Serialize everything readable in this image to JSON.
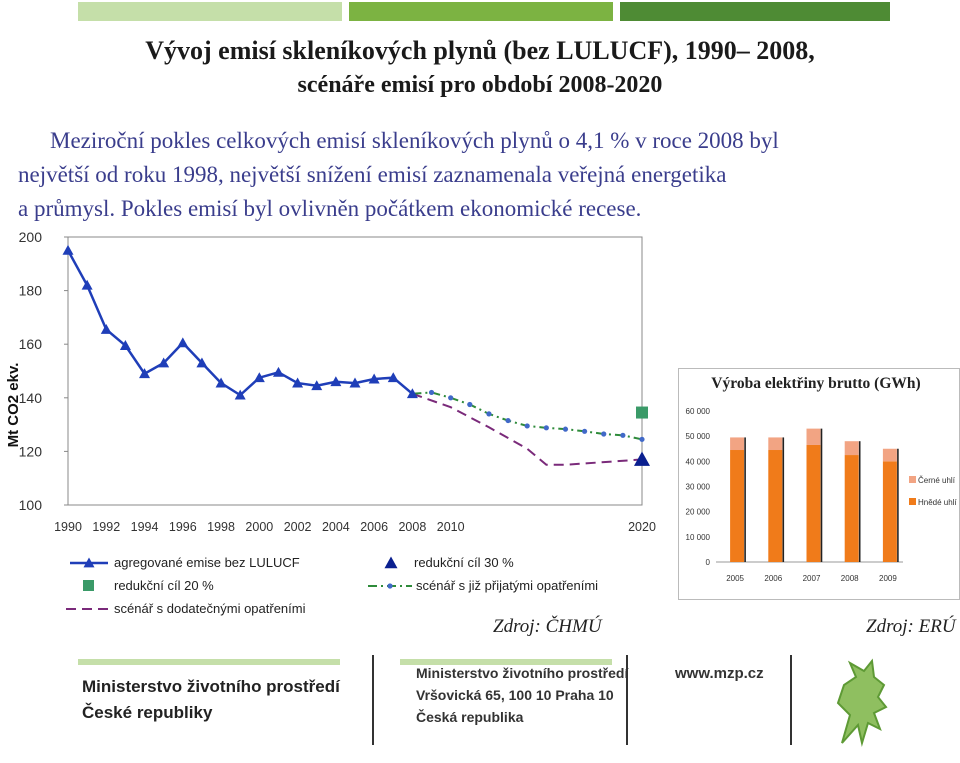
{
  "title": {
    "line1": "Vývoj emisí skleníkových plynů (bez LULUCF), 1990– 2008,",
    "line2": "scénáře emisí pro období 2008-2020"
  },
  "intro": [
    "Meziroční pokles celkových emisí skleníkových plynů o 4,1 % v roce 2008 byl",
    "největší od roku 1998, největší snížení emisí zaznamenala veřejná energetika",
    "a průmysl. Pokles emisí byl ovlivněn počátkem ekonomické recese."
  ],
  "colors": {
    "accent_dark_green": "#4e8b34",
    "accent_green": "#7cb342",
    "accent_light_green": "#c5dfa9",
    "series_blue": "#1f3eb8",
    "target_navy": "#0a1f8f",
    "marker_green": "#3a9a68",
    "dash_green": "#2e8b3a",
    "dash_purple": "#7a2a7a",
    "bar_orange": "#f07b1a",
    "bar_salmon": "#f2a483"
  },
  "chart_data": [
    {
      "type": "line",
      "title": "",
      "xlabel": "",
      "ylabel": "Mt CO2 ekv.",
      "xlim": [
        1990,
        2020
      ],
      "ylim": [
        100,
        200
      ],
      "yticks": [
        "100",
        "120",
        "140",
        "160",
        "180",
        "200"
      ],
      "xticks": [
        "1990",
        "1992",
        "1994",
        "1996",
        "1998",
        "2000",
        "2002",
        "2004",
        "2006",
        "2008",
        "2010",
        "2020"
      ],
      "series": [
        {
          "name": "agregované emise bez LULUCF",
          "style": "solid-triangle",
          "x": [
            1990,
            1991,
            1992,
            1993,
            1994,
            1995,
            1996,
            1997,
            1998,
            1999,
            2000,
            2001,
            2002,
            2003,
            2004,
            2005,
            2006,
            2007,
            2008
          ],
          "values": [
            195,
            182,
            165.5,
            159.5,
            149,
            153,
            160.5,
            153,
            145.5,
            141,
            147.5,
            149.5,
            145.5,
            144.5,
            146,
            145.5,
            147,
            147.5,
            141.5
          ]
        },
        {
          "name": "scénář s již přijatými opatřeními",
          "style": "dash-dot-green",
          "x": [
            2008,
            2009,
            2010,
            2011,
            2012,
            2013,
            2014,
            2015,
            2016,
            2017,
            2018,
            2019,
            2020
          ],
          "values": [
            141.5,
            142,
            140,
            137.5,
            134,
            131.5,
            129.5,
            128.8,
            128.3,
            127.5,
            126.5,
            126,
            124.5
          ]
        },
        {
          "name": "scénář s dodatečnými opatřeními",
          "style": "dash-purple",
          "x": [
            2008,
            2010,
            2012,
            2014,
            2015,
            2016,
            2018,
            2020
          ],
          "values": [
            141.5,
            136.5,
            129,
            121,
            115,
            115,
            116,
            117
          ]
        },
        {
          "name": "redukční cíl 20 %",
          "style": "square-green",
          "x": [
            2020
          ],
          "values": [
            134.5
          ]
        },
        {
          "name": "redukční cíl 30 %",
          "style": "triangle-navy",
          "x": [
            2020
          ],
          "values": [
            117
          ]
        }
      ],
      "legend": [
        "agregované emise bez LULUCF",
        "redukční cíl 30 %",
        "redukční cíl 20 %",
        "scénář s již přijatými opatřeními",
        "scénář s dodatečnými opatřeními"
      ],
      "source": "Zdroj: ČHMÚ"
    },
    {
      "type": "bar",
      "title": "Výroba elektřiny brutto (GWh)",
      "xlabel": "",
      "ylabel": "",
      "ylim": [
        0,
        60000
      ],
      "yticks": [
        "0",
        "10 000",
        "20 000",
        "30 000",
        "40 000",
        "50 000",
        "60 000"
      ],
      "categories": [
        "2005",
        "2006",
        "2007",
        "2008",
        "2009"
      ],
      "series": [
        {
          "name": "Hnědé uhlí",
          "values": [
            44500,
            44500,
            46500,
            42500,
            40000
          ]
        },
        {
          "name": "Černé uhlí",
          "values": [
            5000,
            5000,
            6500,
            5500,
            5000
          ]
        }
      ],
      "legend": [
        "Černé uhlí",
        "Hnědé uhlí"
      ],
      "source": "Zdroj: ERÚ"
    }
  ],
  "footer": {
    "left_line1": "Ministerstvo životního prostředí",
    "left_line2": "České republiky",
    "mid_line1": "Ministerstvo životního prostředí",
    "mid_line2": "Vršovická 65, 100 10 Praha 10",
    "mid_line3": "Česká republika",
    "url": "www.mzp.cz"
  }
}
